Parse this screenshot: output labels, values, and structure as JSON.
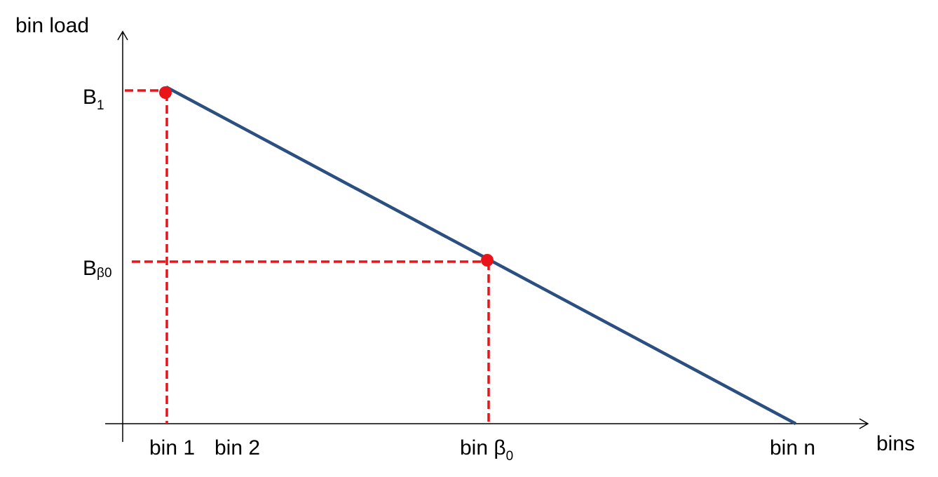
{
  "axes": {
    "y_label": "bin load",
    "x_label": "bins"
  },
  "y_labels": [
    {
      "base": "B",
      "sub": "1"
    },
    {
      "base": "B",
      "sub": "β0"
    }
  ],
  "x_labels": [
    {
      "base": "bin 1"
    },
    {
      "base": "bin 2"
    },
    {
      "base": "bin β",
      "sub": "0"
    },
    {
      "base": "bin n"
    }
  ]
}
